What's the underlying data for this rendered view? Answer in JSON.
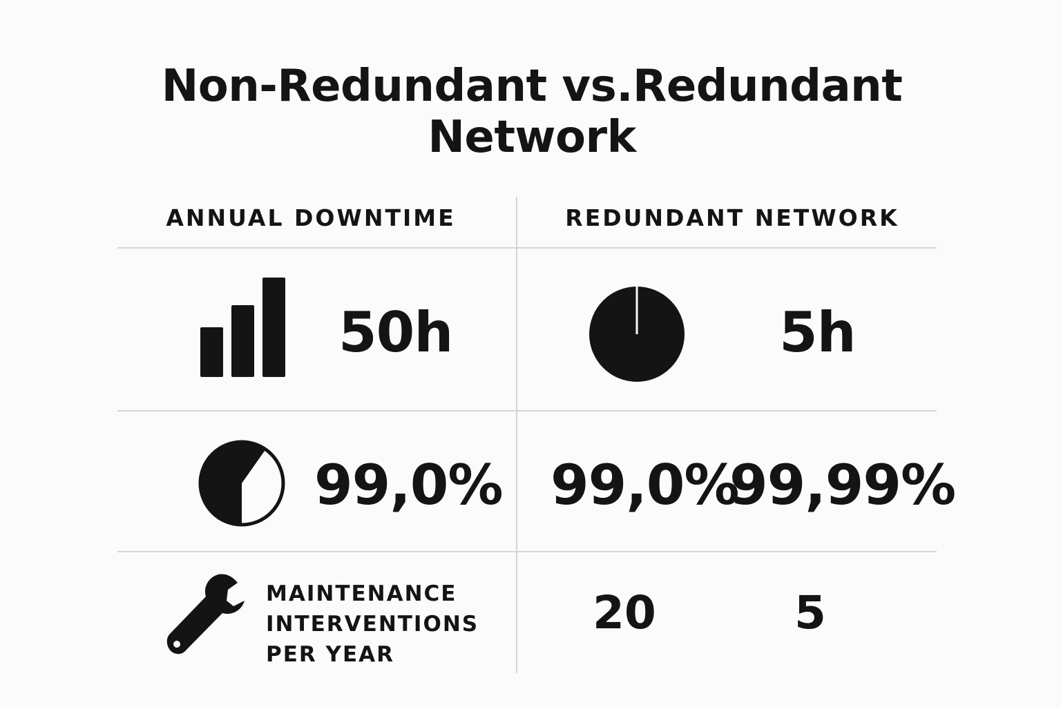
{
  "title": {
    "line1": "Non-Redundant vs.Redundant",
    "line2": "Network"
  },
  "columns": {
    "left_header": "ANNUAL DOWNTIME",
    "right_header": "REDUNDANT NETWORK"
  },
  "rows": {
    "downtime": {
      "left_icon": "bar-chart-icon",
      "left_value": "50h",
      "right_icon": "pie-clock-icon",
      "right_value": "5h"
    },
    "availability": {
      "left_icon": "pie-chart-icon",
      "left_value": "99,0%",
      "right_value_a": "99,0%",
      "right_value_b": "99,99%"
    },
    "maintenance": {
      "icon": "wrench-icon",
      "label_lines": [
        "MAINTENANCE",
        "INTERVENTIONS",
        "PER YEAR"
      ],
      "value_a": "20",
      "value_b": "5"
    }
  }
}
